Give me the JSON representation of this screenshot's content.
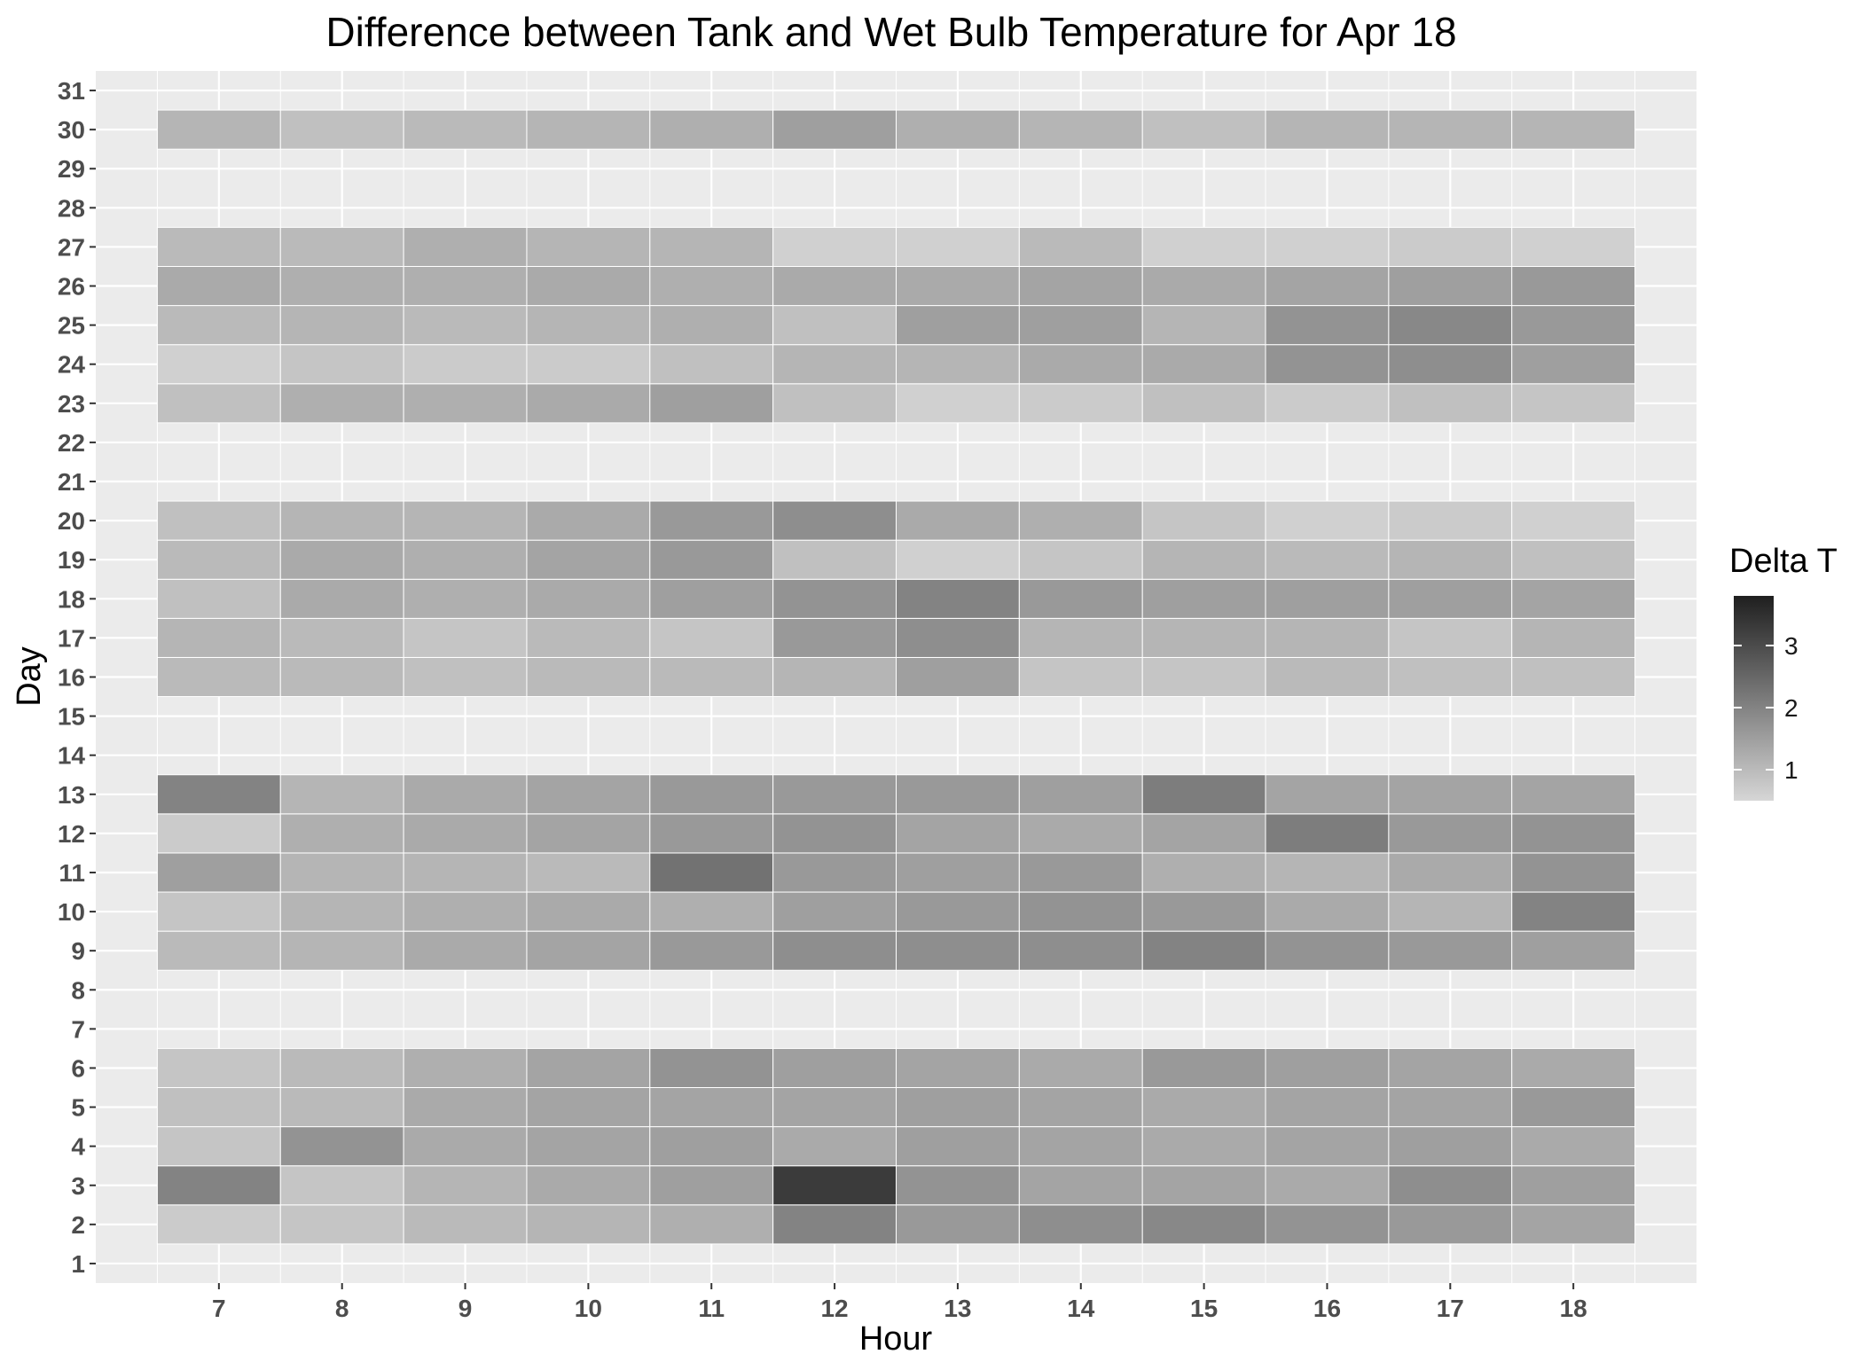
{
  "chart_data": {
    "type": "heatmap",
    "title": "Difference between Tank and Wet Bulb Temperature for Apr 18",
    "xlabel": "Hour",
    "ylabel": "Day",
    "x_ticks": [
      7,
      8,
      9,
      10,
      11,
      12,
      13,
      14,
      15,
      16,
      17,
      18
    ],
    "y_ticks": [
      1,
      2,
      3,
      4,
      5,
      6,
      7,
      8,
      9,
      10,
      11,
      12,
      13,
      14,
      15,
      16,
      17,
      18,
      19,
      20,
      21,
      22,
      23,
      24,
      25,
      26,
      27,
      28,
      29,
      30,
      31
    ],
    "xlim": [
      6,
      19
    ],
    "ylim": [
      0.5,
      31.5
    ],
    "grid": true,
    "legend": {
      "title": "Delta T",
      "position": "right",
      "range": [
        0.5,
        3.8
      ],
      "ticks": [
        1,
        2,
        3
      ],
      "color_low": "#d6d6d6",
      "color_high": "#1f1f1f"
    },
    "hours": [
      7,
      8,
      9,
      10,
      11,
      12,
      13,
      14,
      15,
      16,
      17,
      18
    ],
    "rows": [
      {
        "day": 2,
        "values": [
          0.7,
          0.8,
          1.0,
          1.1,
          1.2,
          2.0,
          1.6,
          1.8,
          1.9,
          1.7,
          1.6,
          1.4
        ]
      },
      {
        "day": 3,
        "values": [
          2.0,
          0.8,
          1.1,
          1.3,
          1.5,
          3.3,
          1.7,
          1.4,
          1.4,
          1.3,
          1.8,
          1.5
        ]
      },
      {
        "day": 4,
        "values": [
          0.8,
          1.7,
          1.3,
          1.4,
          1.5,
          1.3,
          1.5,
          1.4,
          1.3,
          1.4,
          1.5,
          1.3
        ]
      },
      {
        "day": 5,
        "values": [
          0.9,
          1.0,
          1.3,
          1.4,
          1.4,
          1.4,
          1.5,
          1.4,
          1.3,
          1.4,
          1.4,
          1.6
        ]
      },
      {
        "day": 6,
        "values": [
          0.8,
          1.0,
          1.2,
          1.4,
          1.7,
          1.5,
          1.4,
          1.3,
          1.6,
          1.5,
          1.4,
          1.3
        ]
      },
      {
        "day": 9,
        "values": [
          1.0,
          1.1,
          1.3,
          1.4,
          1.6,
          1.8,
          1.8,
          1.8,
          2.0,
          1.7,
          1.6,
          1.5
        ]
      },
      {
        "day": 10,
        "values": [
          0.8,
          1.1,
          1.2,
          1.3,
          1.2,
          1.5,
          1.6,
          1.7,
          1.6,
          1.3,
          1.1,
          2.0
        ]
      },
      {
        "day": 11,
        "values": [
          1.5,
          1.1,
          1.1,
          1.0,
          2.3,
          1.6,
          1.5,
          1.6,
          1.2,
          1.1,
          1.3,
          1.7
        ]
      },
      {
        "day": 12,
        "values": [
          0.7,
          1.2,
          1.3,
          1.4,
          1.6,
          1.7,
          1.4,
          1.3,
          1.4,
          2.1,
          1.6,
          1.7
        ]
      },
      {
        "day": 13,
        "values": [
          2.0,
          1.1,
          1.3,
          1.4,
          1.6,
          1.6,
          1.6,
          1.5,
          2.1,
          1.4,
          1.4,
          1.4
        ]
      },
      {
        "day": 16,
        "values": [
          1.0,
          1.0,
          0.9,
          1.0,
          1.0,
          1.1,
          1.5,
          0.8,
          0.8,
          1.0,
          0.9,
          0.9
        ]
      },
      {
        "day": 17,
        "values": [
          1.1,
          1.0,
          0.8,
          1.0,
          0.8,
          1.6,
          1.8,
          1.1,
          1.1,
          1.1,
          0.8,
          1.1
        ]
      },
      {
        "day": 18,
        "values": [
          0.9,
          1.3,
          1.2,
          1.3,
          1.5,
          1.7,
          2.0,
          1.6,
          1.5,
          1.5,
          1.5,
          1.4
        ]
      },
      {
        "day": 19,
        "values": [
          1.0,
          1.3,
          1.2,
          1.4,
          1.6,
          0.9,
          0.6,
          0.8,
          1.1,
          1.0,
          1.1,
          0.9
        ]
      },
      {
        "day": 20,
        "values": [
          0.9,
          1.1,
          1.1,
          1.3,
          1.6,
          1.8,
          1.3,
          1.2,
          0.8,
          0.6,
          0.7,
          0.6
        ]
      },
      {
        "day": 23,
        "values": [
          0.9,
          1.2,
          1.2,
          1.3,
          1.5,
          0.9,
          0.6,
          0.7,
          0.9,
          0.7,
          0.9,
          0.8
        ]
      },
      {
        "day": 24,
        "values": [
          0.6,
          0.8,
          0.7,
          0.7,
          0.9,
          1.1,
          1.1,
          1.3,
          1.3,
          1.7,
          1.8,
          1.5
        ]
      },
      {
        "day": 25,
        "values": [
          1.0,
          1.1,
          1.0,
          1.1,
          1.2,
          0.9,
          1.5,
          1.5,
          1.1,
          1.7,
          1.9,
          1.6
        ]
      },
      {
        "day": 26,
        "values": [
          1.3,
          1.2,
          1.2,
          1.3,
          1.2,
          1.3,
          1.3,
          1.4,
          1.3,
          1.4,
          1.5,
          1.6
        ]
      },
      {
        "day": 27,
        "values": [
          1.0,
          1.0,
          1.2,
          1.1,
          1.1,
          0.6,
          0.6,
          1.0,
          0.6,
          0.6,
          0.7,
          0.6
        ]
      },
      {
        "day": 30,
        "values": [
          1.1,
          0.9,
          1.0,
          1.1,
          1.2,
          1.5,
          1.2,
          1.1,
          0.9,
          1.1,
          1.1,
          1.1
        ]
      }
    ]
  }
}
